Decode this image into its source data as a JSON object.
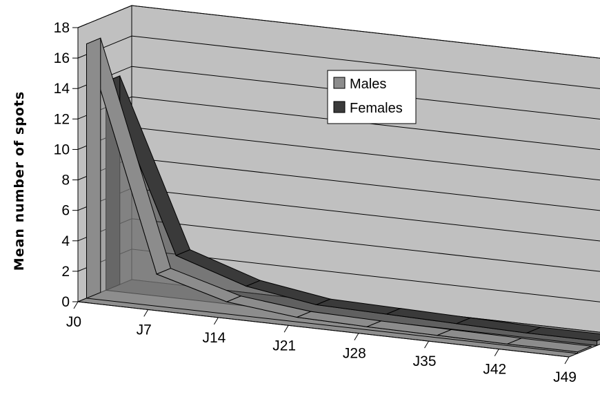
{
  "chart_data": {
    "type": "area",
    "view": "3d-ribbon",
    "categories": [
      "J0",
      "J7",
      "J14",
      "J21",
      "J28",
      "J35",
      "J42",
      "J49"
    ],
    "series": [
      {
        "name": "Males",
        "values": [
          16.7,
          2.1,
          0.8,
          0.3,
          0.2,
          0.15,
          0.1,
          0.1
        ]
      },
      {
        "name": "Females",
        "values": [
          13.7,
          2.8,
          1.3,
          0.6,
          0.5,
          0.4,
          0.3,
          0.3
        ]
      }
    ],
    "ylabel": "Mean number of spots",
    "xlabel": "",
    "title": "",
    "ylim": [
      0,
      18
    ],
    "yticks": [
      0,
      2,
      4,
      6,
      8,
      10,
      12,
      14,
      16,
      18
    ],
    "grid": true,
    "legend_position": "upper-center",
    "colors": {
      "Males": "#8c8c8c",
      "Females": "#3a3a3a",
      "wall": "#c0c0c0",
      "floor": "#8f8f8f",
      "grid": "#000000"
    }
  }
}
